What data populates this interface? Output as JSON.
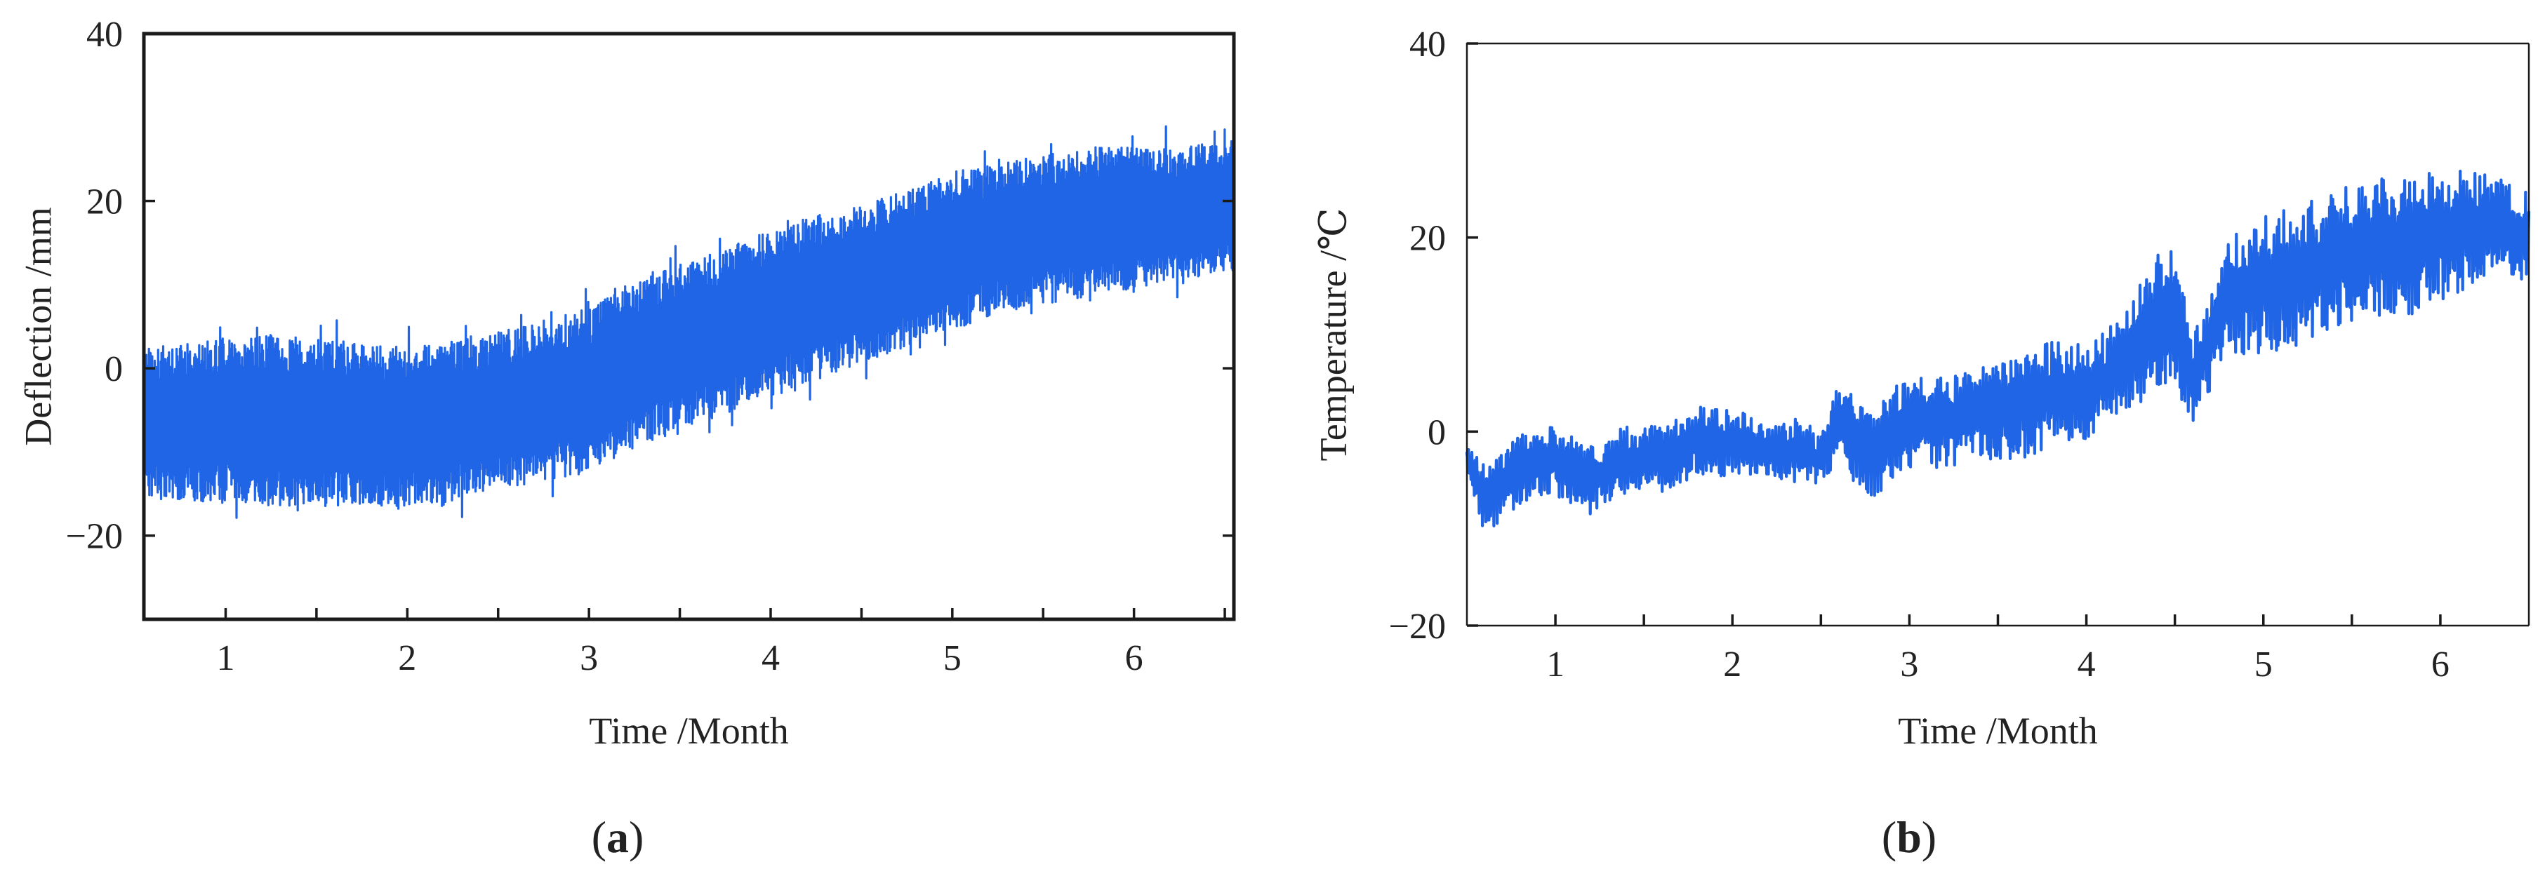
{
  "chart_data": [
    {
      "type": "line",
      "panel": "(a)",
      "xlabel": "Time /Month",
      "ylabel": "Deflection /mm",
      "xlim": [
        0.55,
        6.55
      ],
      "ylim": [
        -30,
        40
      ],
      "xticks": [
        1,
        2,
        3,
        4,
        5,
        6
      ],
      "yticks": [
        -20,
        0,
        20,
        40
      ],
      "ytick_labels": [
        "−20",
        "0",
        "20",
        "40"
      ],
      "color": "#1f65e6",
      "series": [
        {
          "x": [
            0.55,
            0.75,
            1.0,
            1.25,
            1.5,
            1.75,
            2.0,
            2.25,
            2.5,
            2.75,
            3.0,
            3.25,
            3.5,
            3.75,
            4.0,
            4.25,
            4.5,
            4.75,
            5.0,
            5.25,
            5.5,
            5.75,
            6.0,
            6.25,
            6.55
          ],
          "lower": [
            -15,
            -15.5,
            -15.5,
            -16,
            -16,
            -16,
            -16,
            -15.5,
            -14,
            -13,
            -12,
            -9,
            -7,
            -5,
            -3,
            -1,
            1,
            3,
            5,
            7,
            8,
            9,
            10,
            11,
            12
          ],
          "upper": [
            2,
            2.5,
            3,
            3.5,
            3,
            2.5,
            2,
            3,
            4,
            5,
            7,
            10,
            12,
            14,
            16,
            18,
            19,
            21,
            23,
            24,
            25,
            26,
            26,
            26,
            27
          ],
          "peak_min": -18,
          "peak_max": 30
        }
      ]
    },
    {
      "type": "line",
      "panel": "(b)",
      "xlabel": "Time /Month",
      "ylabel": "Temperature /℃",
      "xlim": [
        0.5,
        6.5
      ],
      "ylim": [
        -20,
        40
      ],
      "xticks": [
        1,
        2,
        3,
        4,
        5,
        6
      ],
      "yticks": [
        -20,
        0,
        20,
        40
      ],
      "ytick_labels": [
        "−20",
        "0",
        "20",
        "40"
      ],
      "color": "#1f65e6",
      "series": [
        {
          "x": [
            0.5,
            0.6,
            0.8,
            1.0,
            1.2,
            1.4,
            1.6,
            1.8,
            2.0,
            2.2,
            2.4,
            2.5,
            2.6,
            2.8,
            3.0,
            3.2,
            3.4,
            3.6,
            3.8,
            4.0,
            4.2,
            4.4,
            4.5,
            4.6,
            4.8,
            5.0,
            5.2,
            5.4,
            5.6,
            5.8,
            6.0,
            6.2,
            6.5
          ],
          "y": [
            -3,
            -7,
            -4,
            -3,
            -5,
            -3,
            -3,
            -1,
            -1,
            -2,
            -2,
            -3,
            1,
            -2,
            1,
            1,
            2,
            3,
            4,
            4,
            7,
            11,
            12,
            5,
            14,
            15,
            16,
            18,
            19,
            19,
            20,
            21,
            20
          ],
          "amplitude": [
            2,
            3,
            3,
            3,
            3,
            3,
            3,
            3,
            3,
            2,
            3,
            2,
            4,
            4,
            4,
            4,
            4,
            5,
            5,
            4,
            4,
            6,
            6,
            4,
            5,
            6,
            6,
            6,
            6,
            6,
            6,
            5,
            4
          ]
        }
      ]
    }
  ]
}
